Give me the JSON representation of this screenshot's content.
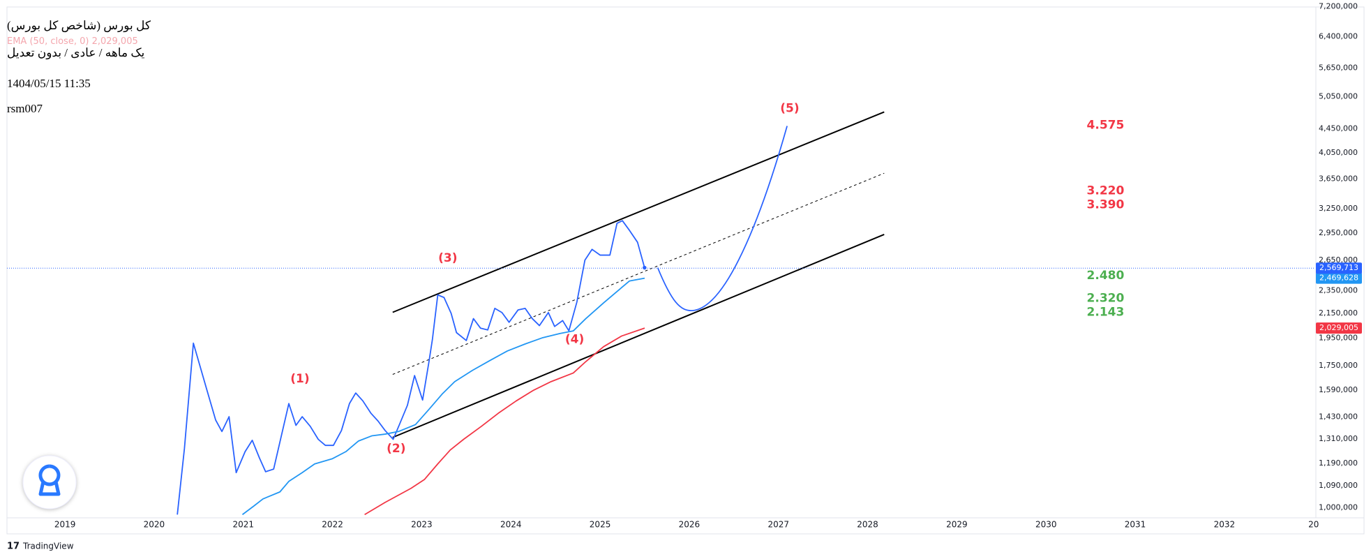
{
  "chart_data": {
    "type": "line",
    "title": "کل بورس (شاخص کل بورس)",
    "subtitle": "یک ماهه / عادی / بدون تعدیل",
    "date": "1404/05/15 11:35",
    "author": "rsm007",
    "watermark": "TradingView",
    "log_scale": true,
    "grid": false,
    "xlim": [
      2018.35,
      2033.01
    ],
    "xticks": [
      2019,
      2020,
      2021,
      2022,
      2023,
      2024,
      2025,
      2026,
      2027,
      2028,
      2029,
      2030,
      2031,
      2032,
      {
        "value": 2033,
        "label": "20"
      }
    ],
    "ylim": [
      966000,
      7270000
    ],
    "yticks": [
      {
        "value": 1000000,
        "label": "1,000,000"
      },
      {
        "value": 1090000,
        "label": "1,090,000"
      },
      {
        "value": 1190000,
        "label": "1,190,000"
      },
      {
        "value": 1310000,
        "label": "1,310,000"
      },
      {
        "value": 1430000,
        "label": "1,430,000"
      },
      {
        "value": 1590000,
        "label": "1,590,000"
      },
      {
        "value": 1750000,
        "label": "1,750,000"
      },
      {
        "value": 1950000,
        "label": "1,950,000"
      },
      {
        "value": 2150000,
        "label": "2,150,000"
      },
      {
        "value": 2350000,
        "label": "2,350,000"
      },
      {
        "value": 2650000,
        "label": "2,650,000"
      },
      {
        "value": 2950000,
        "label": "2,950,000"
      },
      {
        "value": 3250000,
        "label": "3,250,000"
      },
      {
        "value": 3650000,
        "label": "3,650,000"
      },
      {
        "value": 4050000,
        "label": "4,050,000"
      },
      {
        "value": 4450000,
        "label": "4,450,000"
      },
      {
        "value": 5050000,
        "label": "5,050,000"
      },
      {
        "value": 5650000,
        "label": "5,650,000"
      },
      {
        "value": 6400000,
        "label": "6,400,000"
      },
      {
        "value": 7200000,
        "label": "7,200,000"
      }
    ],
    "series": [
      {
        "color": "#2962ff",
        "last_label": "2,569,713",
        "x": [
          2020.26,
          2020.34,
          2020.44,
          2020.59,
          2020.69,
          2020.76,
          2020.84,
          2020.92,
          2021.02,
          2021.1,
          2021.18,
          2021.25,
          2021.34,
          2021.51,
          2021.59,
          2021.66,
          2021.75,
          2021.84,
          2021.92,
          2022.01,
          2022.1,
          2022.19,
          2022.26,
          2022.34,
          2022.43,
          2022.51,
          2022.59,
          2022.68,
          2022.75,
          2022.84,
          2022.92,
          2023.01,
          2023.08,
          2023.12,
          2023.18,
          2023.25,
          2023.33,
          2023.39,
          2023.5,
          2023.58,
          2023.66,
          2023.74,
          2023.82,
          2023.9,
          2023.98,
          2024.08,
          2024.16,
          2024.24,
          2024.32,
          2024.42,
          2024.49,
          2024.58,
          2024.65,
          2024.74,
          2024.83,
          2024.91,
          2025.0,
          2025.11,
          2025.19,
          2025.25,
          2025.33,
          2025.42,
          2025.5
        ],
        "values": [
          973000,
          1264000,
          1912000,
          1593000,
          1412000,
          1350000,
          1431000,
          1148000,
          1247000,
          1304000,
          1217000,
          1152000,
          1164000,
          1507000,
          1383000,
          1431000,
          1378000,
          1309000,
          1278000,
          1278000,
          1355000,
          1507000,
          1571000,
          1523000,
          1451000,
          1407000,
          1355000,
          1309000,
          1387000,
          1497000,
          1683000,
          1528000,
          1772000,
          1940000,
          2312000,
          2289000,
          2150000,
          1993000,
          1932000,
          2106000,
          2028000,
          2014000,
          2193000,
          2157000,
          2076000,
          2179000,
          2193000,
          2106000,
          2049000,
          2157000,
          2042000,
          2090000,
          2007000,
          2249000,
          2652000,
          2767000,
          2705000,
          2705000,
          3066000,
          3098000,
          2981000,
          2845000,
          2569713
        ]
      },
      {
        "color": "#2196f3",
        "last_label": "2,469,628",
        "x": [
          2020.99,
          2021.12,
          2021.22,
          2021.41,
          2021.51,
          2021.66,
          2021.8,
          2022.0,
          2022.15,
          2022.29,
          2022.44,
          2022.59,
          2022.74,
          2022.93,
          2023.08,
          2023.23,
          2023.37,
          2023.57,
          2023.76,
          2023.96,
          2024.16,
          2024.35,
          2024.55,
          2024.7,
          2024.84,
          2025.04,
          2025.19,
          2025.33,
          2025.5
        ],
        "values": [
          973000,
          1007000,
          1035000,
          1064000,
          1109000,
          1148000,
          1188000,
          1213000,
          1247000,
          1300000,
          1327000,
          1336000,
          1350000,
          1387000,
          1472000,
          1565000,
          1643000,
          1718000,
          1784000,
          1854000,
          1906000,
          1952000,
          1986000,
          2007000,
          2106000,
          2241000,
          2344000,
          2443000,
          2469628
        ]
      },
      {
        "name": "EMA (50, close, 0)",
        "color": "#f23645",
        "last_label": "2,029,005",
        "x": [
          2022.36,
          2022.59,
          2022.88,
          2023.03,
          2023.18,
          2023.32,
          2023.47,
          2023.67,
          2023.86,
          2024.06,
          2024.25,
          2024.45,
          2024.7,
          2024.84,
          2025.04,
          2025.24,
          2025.5
        ],
        "values": [
          973000,
          1021000,
          1079000,
          1117000,
          1188000,
          1255000,
          1309000,
          1378000,
          1451000,
          1523000,
          1587000,
          1643000,
          1700000,
          1778000,
          1886000,
          1966000,
          2029005
        ]
      }
    ],
    "annotations": [
      {
        "text": "(1)",
        "color": "#f23645"
      },
      {
        "text": "(2)",
        "color": "#f23645"
      },
      {
        "text": "(3)",
        "color": "#f23645"
      },
      {
        "text": "(4)",
        "color": "#f23645"
      },
      {
        "text": "(5)",
        "color": "#f23645"
      },
      {
        "text": "4.575",
        "color": "#f23645"
      },
      {
        "text": "3.220",
        "color": "#f23645"
      },
      {
        "text": "3.390",
        "color": "#f23645"
      },
      {
        "text": "2.480",
        "color": "#4caf50"
      },
      {
        "text": "2.320",
        "color": "#4caf50"
      },
      {
        "text": "2.143",
        "color": "#4caf50"
      }
    ]
  }
}
